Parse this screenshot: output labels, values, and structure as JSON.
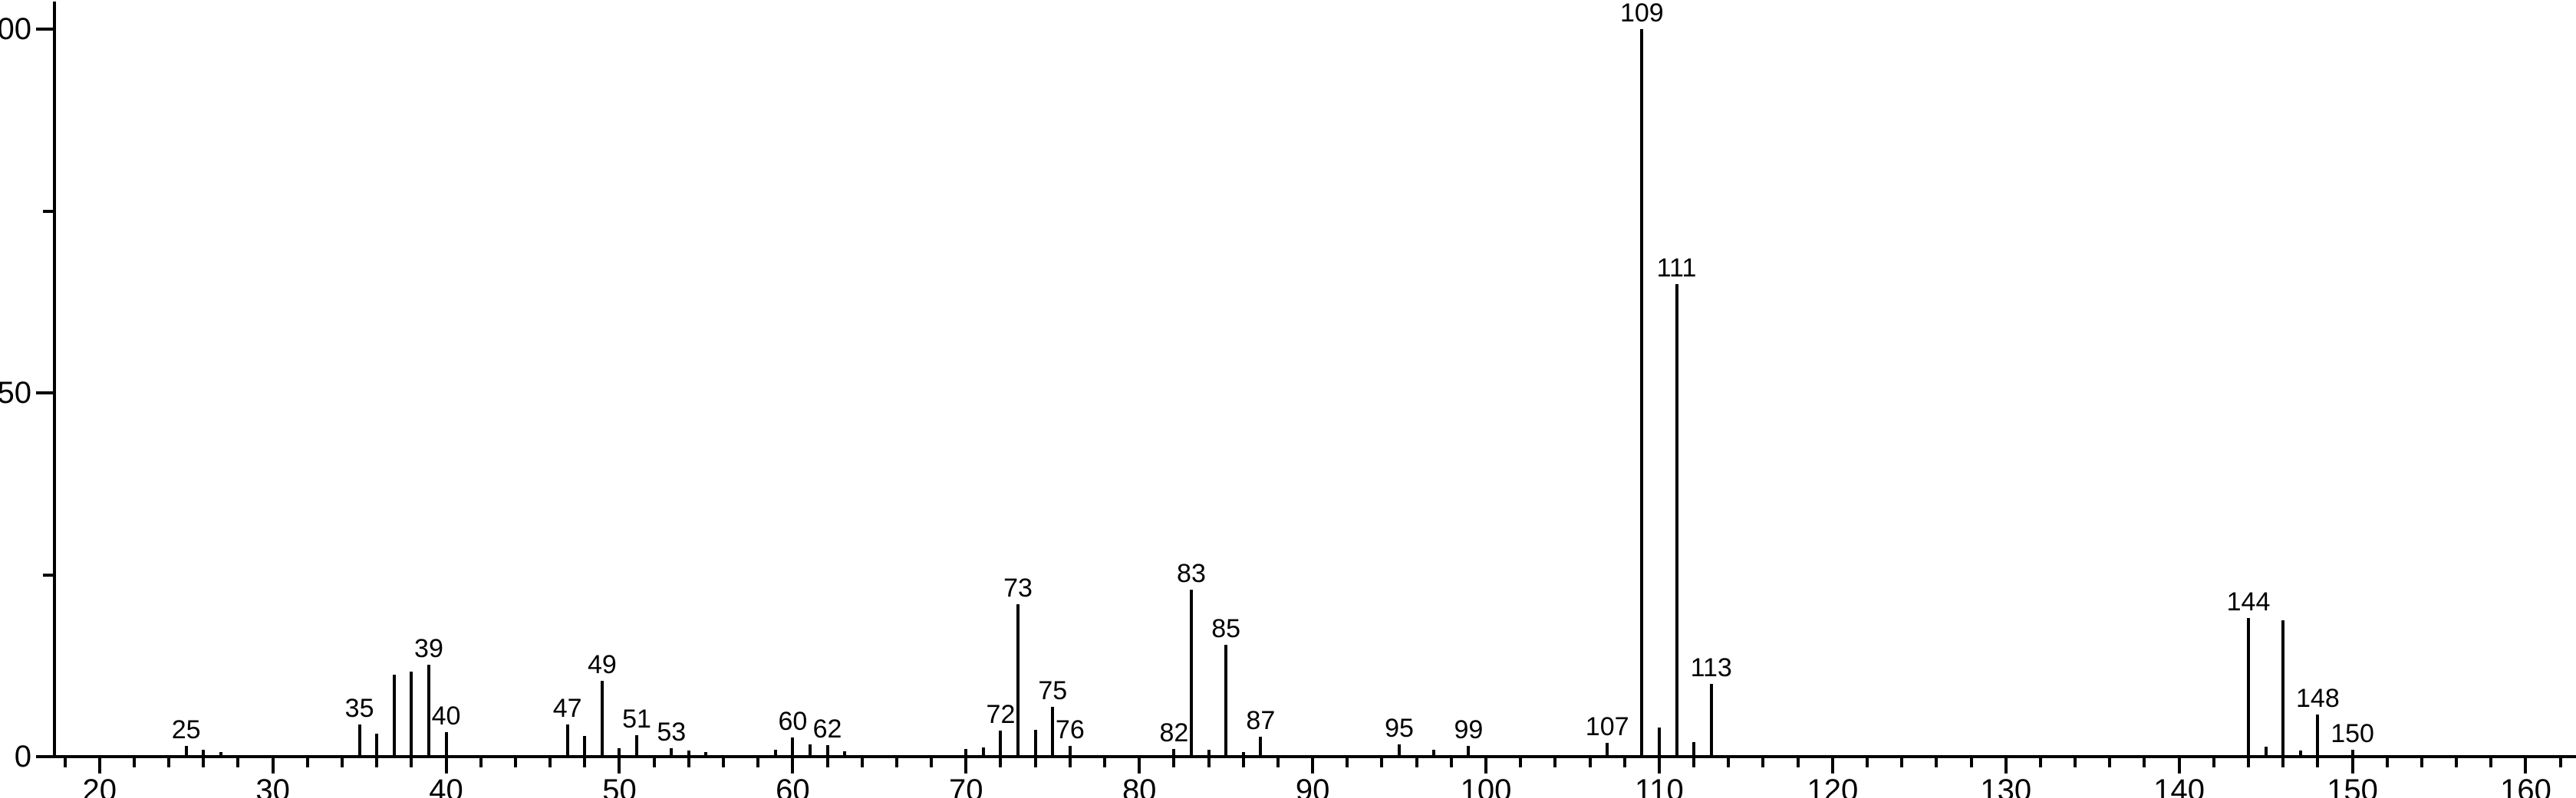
{
  "chart_data": {
    "type": "bar",
    "subtype": "mass-spectrum-stick-plot",
    "title": "",
    "xlabel": "",
    "ylabel": "",
    "grid": false,
    "legend": null,
    "x_axis": {
      "range": [
        17.4,
        162.9
      ],
      "major_ticks": [
        20,
        30,
        40,
        50,
        60,
        70,
        80,
        90,
        100,
        110,
        120,
        130,
        140,
        150,
        160
      ],
      "minor_tick_step": 2,
      "minor_tick_range": [
        18,
        162
      ]
    },
    "y_axis": {
      "range": [
        0,
        104
      ],
      "major_ticks": [
        0,
        50,
        100
      ],
      "minor_ticks": [
        25,
        75
      ]
    },
    "peaks": [
      {
        "mz": 25,
        "intensity": 1.5,
        "labeled": true
      },
      {
        "mz": 26,
        "intensity": 1.0,
        "labeled": false
      },
      {
        "mz": 27,
        "intensity": 0.6,
        "labeled": false
      },
      {
        "mz": 35,
        "intensity": 4.4,
        "labeled": true
      },
      {
        "mz": 36,
        "intensity": 3.2,
        "labeled": false
      },
      {
        "mz": 37,
        "intensity": 11.3,
        "labeled": false
      },
      {
        "mz": 38,
        "intensity": 11.7,
        "labeled": false
      },
      {
        "mz": 39,
        "intensity": 12.6,
        "labeled": true
      },
      {
        "mz": 40,
        "intensity": 3.4,
        "labeled": true
      },
      {
        "mz": 47,
        "intensity": 4.4,
        "labeled": true
      },
      {
        "mz": 48,
        "intensity": 2.8,
        "labeled": false
      },
      {
        "mz": 49,
        "intensity": 10.4,
        "labeled": true
      },
      {
        "mz": 50,
        "intensity": 1.2,
        "labeled": false
      },
      {
        "mz": 51,
        "intensity": 2.9,
        "labeled": true
      },
      {
        "mz": 53,
        "intensity": 1.2,
        "labeled": true
      },
      {
        "mz": 54,
        "intensity": 0.8,
        "labeled": false
      },
      {
        "mz": 55,
        "intensity": 0.6,
        "labeled": false
      },
      {
        "mz": 59,
        "intensity": 1.0,
        "labeled": false
      },
      {
        "mz": 60,
        "intensity": 2.6,
        "labeled": true
      },
      {
        "mz": 61,
        "intensity": 1.7,
        "labeled": false
      },
      {
        "mz": 62,
        "intensity": 1.6,
        "labeled": true
      },
      {
        "mz": 63,
        "intensity": 0.7,
        "labeled": false
      },
      {
        "mz": 70,
        "intensity": 1.1,
        "labeled": false
      },
      {
        "mz": 71,
        "intensity": 1.3,
        "labeled": false
      },
      {
        "mz": 72,
        "intensity": 3.6,
        "labeled": true
      },
      {
        "mz": 73,
        "intensity": 21.0,
        "labeled": true
      },
      {
        "mz": 74,
        "intensity": 3.7,
        "labeled": false
      },
      {
        "mz": 75,
        "intensity": 6.8,
        "labeled": true
      },
      {
        "mz": 76,
        "intensity": 1.5,
        "labeled": true
      },
      {
        "mz": 82,
        "intensity": 1.1,
        "labeled": true
      },
      {
        "mz": 83,
        "intensity": 23.0,
        "labeled": true
      },
      {
        "mz": 84,
        "intensity": 1.0,
        "labeled": false
      },
      {
        "mz": 85,
        "intensity": 15.4,
        "labeled": true
      },
      {
        "mz": 86,
        "intensity": 0.6,
        "labeled": false
      },
      {
        "mz": 87,
        "intensity": 2.7,
        "labeled": true
      },
      {
        "mz": 95,
        "intensity": 1.7,
        "labeled": true
      },
      {
        "mz": 97,
        "intensity": 0.9,
        "labeled": false
      },
      {
        "mz": 99,
        "intensity": 1.5,
        "labeled": true
      },
      {
        "mz": 107,
        "intensity": 1.9,
        "labeled": true
      },
      {
        "mz": 109,
        "intensity": 100.0,
        "labeled": true
      },
      {
        "mz": 110,
        "intensity": 4.0,
        "labeled": false
      },
      {
        "mz": 111,
        "intensity": 65.0,
        "labeled": true
      },
      {
        "mz": 112,
        "intensity": 2.0,
        "labeled": false
      },
      {
        "mz": 113,
        "intensity": 10.0,
        "labeled": true
      },
      {
        "mz": 144,
        "intensity": 19.1,
        "labeled": true
      },
      {
        "mz": 145,
        "intensity": 1.4,
        "labeled": false
      },
      {
        "mz": 146,
        "intensity": 18.7,
        "labeled": false
      },
      {
        "mz": 147,
        "intensity": 0.8,
        "labeled": false
      },
      {
        "mz": 148,
        "intensity": 5.8,
        "labeled": true
      },
      {
        "mz": 150,
        "intensity": 1.0,
        "labeled": true
      }
    ]
  },
  "colors": {
    "foreground": "#000000",
    "background": "#ffffff"
  }
}
